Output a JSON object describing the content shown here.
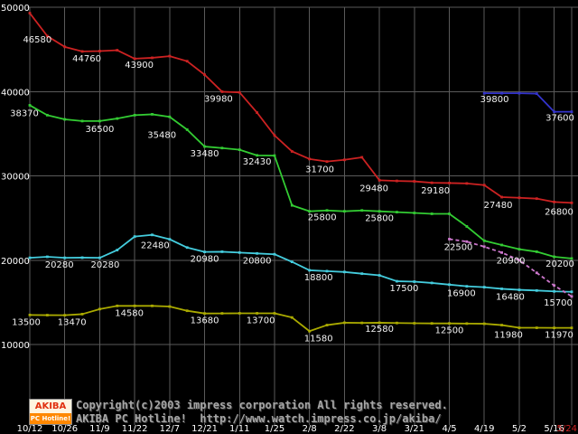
{
  "chart_data": {
    "type": "line",
    "title": "",
    "bg_color": "#000000",
    "grid_color": "#5a5a5a",
    "text_color": "#ffffff",
    "label_color": "#f2f2f2",
    "y_axis_top_value": 50000,
    "y_axis_bottom_value": 10000,
    "y_ticks": [
      50000,
      40000,
      30000,
      20000,
      10000
    ],
    "weeks_total": 31,
    "x_ticks": [
      {
        "label": "10/12",
        "week": 0
      },
      {
        "label": "10/26",
        "week": 2
      },
      {
        "label": "11/9",
        "week": 4
      },
      {
        "label": "11/22",
        "week": 6
      },
      {
        "label": "12/7",
        "week": 8
      },
      {
        "label": "12/21",
        "week": 10
      },
      {
        "label": "1/11",
        "week": 12
      },
      {
        "label": "1/25",
        "week": 14
      },
      {
        "label": "2/8",
        "week": 16
      },
      {
        "label": "2/22",
        "week": 18
      },
      {
        "label": "3/8",
        "week": 20
      },
      {
        "label": "3/21",
        "week": 22
      },
      {
        "label": "4/5",
        "week": 24
      },
      {
        "label": "4/19",
        "week": 26
      },
      {
        "label": "5/2",
        "week": 28
      },
      {
        "label": "5/16",
        "week": 30
      },
      {
        "label": "5/24",
        "week": 31,
        "color": "#cc2222",
        "anchor": "end"
      }
    ],
    "series": [
      {
        "id": "red",
        "color": "#cc2222",
        "dash": null,
        "start_week": 0,
        "values": [
          49300,
          46580,
          45300,
          44760,
          44800,
          44900,
          43900,
          44000,
          44200,
          43600,
          42000,
          39980,
          39900,
          37500,
          34800,
          32900,
          32000,
          31700,
          31900,
          32200,
          29480,
          29400,
          29350,
          29180,
          29150,
          29100,
          28900,
          27480,
          27400,
          27300,
          26900,
          26800
        ],
        "labels": [
          {
            "week": 1,
            "text": "46580",
            "dx": -11,
            "dy": 7
          },
          {
            "week": 3,
            "text": "44760",
            "dx": 5,
            "dy": 11
          },
          {
            "week": 6,
            "text": "43900",
            "dx": 5,
            "dy": 10
          },
          {
            "week": 11,
            "text": "39980",
            "dx": -4,
            "dy": 11
          },
          {
            "week": 17,
            "text": "31700",
            "dx": -8,
            "dy": 12
          },
          {
            "week": 20,
            "text": "29480",
            "dx": -6,
            "dy": 12
          },
          {
            "week": 23,
            "text": "29180",
            "dx": 4,
            "dy": 12
          },
          {
            "week": 27,
            "text": "27480",
            "dx": -4,
            "dy": 12
          },
          {
            "week": 31,
            "text": "26800",
            "dx": -14,
            "dy": 13
          }
        ]
      },
      {
        "id": "green",
        "color": "#33cc33",
        "dash": null,
        "start_week": 0,
        "values": [
          38370,
          37200,
          36700,
          36500,
          36500,
          36800,
          37200,
          37300,
          37000,
          35480,
          33480,
          33300,
          33100,
          32430,
          32400,
          26500,
          25800,
          25900,
          25800,
          25900,
          25800,
          25700,
          25600,
          25500,
          25500,
          24000,
          22300,
          21800,
          21300,
          21000,
          20400,
          20200
        ],
        "labels": [
          {
            "week": 0,
            "text": "38370",
            "dx": -6,
            "dy": 12
          },
          {
            "week": 4,
            "text": "36500",
            "dx": 0,
            "dy": 12
          },
          {
            "week": 9,
            "text": "35480",
            "dx": -28,
            "dy": 9
          },
          {
            "week": 10,
            "text": "33480",
            "dx": 0,
            "dy": 11
          },
          {
            "week": 13,
            "text": "32430",
            "dx": 0,
            "dy": 10
          },
          {
            "week": 16,
            "text": "25800",
            "dx": 14,
            "dy": 10
          },
          {
            "week": 20,
            "text": "25800",
            "dx": 0,
            "dy": 11
          },
          {
            "week": 31,
            "text": "20200",
            "dx": -13,
            "dy": 9
          }
        ]
      },
      {
        "id": "cyan",
        "color": "#44ccdd",
        "dash": null,
        "start_week": 0,
        "values": [
          20280,
          20400,
          20280,
          20300,
          20280,
          21200,
          22800,
          23000,
          22480,
          21500,
          20980,
          21000,
          20900,
          20800,
          20700,
          19800,
          18800,
          18700,
          18600,
          18400,
          18200,
          17500,
          17450,
          17300,
          17100,
          16900,
          16800,
          16600,
          16480,
          16400,
          16300,
          16250
        ],
        "labels": [
          {
            "week": 2,
            "text": "20280",
            "dx": -6,
            "dy": 11
          },
          {
            "week": 4,
            "text": "20280",
            "dx": 6,
            "dy": 11
          },
          {
            "week": 8,
            "text": "22480",
            "dx": -16,
            "dy": 10
          },
          {
            "week": 10,
            "text": "20980",
            "dx": 0,
            "dy": 11
          },
          {
            "week": 13,
            "text": "20800",
            "dx": 0,
            "dy": 11
          },
          {
            "week": 16,
            "text": "18800",
            "dx": 10,
            "dy": 11
          },
          {
            "week": 21,
            "text": "17500",
            "dx": 8,
            "dy": 11
          },
          {
            "week": 25,
            "text": "16900",
            "dx": -6,
            "dy": 11
          },
          {
            "week": 28,
            "text": "16480",
            "dx": -10,
            "dy": 11
          }
        ]
      },
      {
        "id": "yellow",
        "color": "#aaaa00",
        "dash": null,
        "start_week": 0,
        "values": [
          13500,
          13480,
          13470,
          13600,
          14200,
          14580,
          14580,
          14580,
          14500,
          14000,
          13680,
          13690,
          13700,
          13700,
          13700,
          13200,
          11580,
          12300,
          12580,
          12560,
          12580,
          12550,
          12520,
          12500,
          12500,
          12480,
          12460,
          12300,
          11980,
          11980,
          11970,
          11970
        ],
        "labels": [
          {
            "week": 0,
            "text": "13500",
            "dx": -4,
            "dy": 11
          },
          {
            "week": 2,
            "text": "13470",
            "dx": 8,
            "dy": 11
          },
          {
            "week": 6,
            "text": "14580",
            "dx": -6,
            "dy": 11
          },
          {
            "week": 10,
            "text": "13680",
            "dx": 0,
            "dy": 11
          },
          {
            "week": 13,
            "text": "13700",
            "dx": 4,
            "dy": 11
          },
          {
            "week": 16,
            "text": "11580",
            "dx": 10,
            "dy": 11
          },
          {
            "week": 20,
            "text": "12580",
            "dx": 0,
            "dy": 10
          },
          {
            "week": 24,
            "text": "12500",
            "dx": 0,
            "dy": 11
          },
          {
            "week": 28,
            "text": "11980",
            "dx": -12,
            "dy": 11
          },
          {
            "week": 31,
            "text": "11970",
            "dx": -14,
            "dy": 11
          }
        ]
      },
      {
        "id": "blue",
        "color": "#3333cc",
        "dash": null,
        "start_week": 26,
        "values": [
          39800,
          39800,
          39800,
          39750,
          37600,
          37600
        ],
        "labels": [
          {
            "week": 27,
            "text": "39800",
            "dx": -8,
            "dy": 10
          },
          {
            "week": 31,
            "text": "37600",
            "dx": -13,
            "dy": 10
          }
        ]
      },
      {
        "id": "magenta",
        "color": "#cc77cc",
        "dash": "4 3",
        "start_week": 24,
        "values": [
          22500,
          22200,
          21600,
          20900,
          20000,
          18500,
          17000,
          15700
        ],
        "labels": [
          {
            "week": 24,
            "text": "22500",
            "dx": 10,
            "dy": 12
          },
          {
            "week": 27,
            "text": "20900",
            "dx": 10,
            "dy": 12
          },
          {
            "week": 31,
            "text": "15700",
            "dx": -15,
            "dy": 10
          }
        ]
      }
    ]
  },
  "footer": {
    "copyright": "Copyright(c)2003 impress corporation All rights reserved.",
    "site_line": "AKIBA PC Hotline!  http://www.watch.impress.co.jp/akiba/",
    "logo_top": "AKIBA",
    "logo_bottom": "PC Hotline!"
  }
}
